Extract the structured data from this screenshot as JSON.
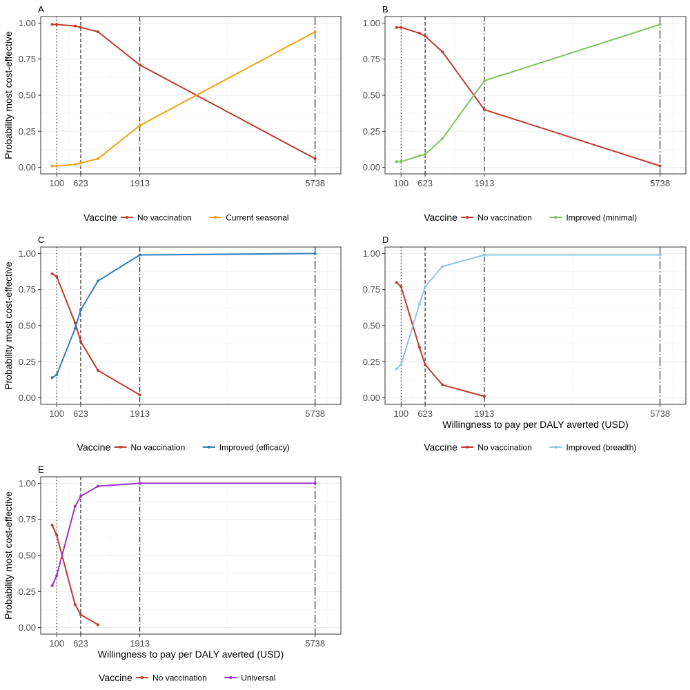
{
  "figure": {
    "y_axis_title": "Probability most cost-effective",
    "x_axis_title": "Willingness to pay per DALY averted (USD)",
    "legend_title": "Vaccine",
    "reference_lines": [
      {
        "x": 100,
        "style": "dotted"
      },
      {
        "x": 623,
        "style": "dashed"
      },
      {
        "x": 1913,
        "style": "dashdot"
      },
      {
        "x": 5738,
        "style": "longdash"
      }
    ]
  },
  "chart_data": [
    {
      "panel": "A",
      "type": "line",
      "xlim": [
        -250,
        6300
      ],
      "ylim": [
        0,
        1
      ],
      "x_ticks": [
        100,
        623,
        1913,
        5738
      ],
      "y_ticks": [
        "0.00",
        "0.25",
        "0.50",
        "0.75",
        "1.00"
      ],
      "xlabel": "",
      "ylabel": "Probability most cost-effective",
      "legend": {
        "title": "Vaccine",
        "position": "bottom"
      },
      "series": [
        {
          "name": "No vaccination",
          "color": "#c0392b",
          "x": [
            0,
            100,
            500,
            623,
            1000,
            1913,
            5738
          ],
          "y": [
            0.99,
            0.99,
            0.98,
            0.97,
            0.94,
            0.71,
            0.06
          ]
        },
        {
          "name": "Current seasonal",
          "color": "#f0a30a",
          "x": [
            0,
            100,
            500,
            623,
            1000,
            1913,
            5738
          ],
          "y": [
            0.01,
            0.01,
            0.02,
            0.03,
            0.06,
            0.29,
            0.94
          ]
        }
      ]
    },
    {
      "panel": "B",
      "type": "line",
      "xlim": [
        -250,
        6300
      ],
      "ylim": [
        0,
        1
      ],
      "x_ticks": [
        100,
        623,
        1913,
        5738
      ],
      "y_ticks": [
        "0.00",
        "0.25",
        "0.50",
        "0.75",
        "1.00"
      ],
      "xlabel": "",
      "ylabel": "",
      "legend": {
        "title": "Vaccine",
        "position": "bottom"
      },
      "series": [
        {
          "name": "No vaccination",
          "color": "#c0392b",
          "x": [
            0,
            100,
            500,
            623,
            1000,
            1913,
            5738
          ],
          "y": [
            0.97,
            0.97,
            0.93,
            0.91,
            0.8,
            0.4,
            0.01
          ]
        },
        {
          "name": "Improved (minimal)",
          "color": "#7dc25c",
          "x": [
            0,
            100,
            500,
            623,
            1000,
            1913,
            5738
          ],
          "y": [
            0.04,
            0.04,
            0.08,
            0.09,
            0.2,
            0.6,
            0.99
          ]
        }
      ]
    },
    {
      "panel": "C",
      "type": "line",
      "xlim": [
        -250,
        6300
      ],
      "ylim": [
        0,
        1
      ],
      "x_ticks": [
        100,
        623,
        1913,
        5738
      ],
      "y_ticks": [
        "0.00",
        "0.25",
        "0.50",
        "0.75",
        "1.00"
      ],
      "xlabel": "",
      "ylabel": "Probability most cost-effective",
      "legend": {
        "title": "Vaccine",
        "position": "bottom"
      },
      "series": [
        {
          "name": "No vaccination",
          "color": "#c0392b",
          "x": [
            0,
            100,
            500,
            623,
            1000,
            1913
          ],
          "y": [
            0.86,
            0.84,
            0.52,
            0.39,
            0.19,
            0.02
          ]
        },
        {
          "name": "Improved (efficacy)",
          "color": "#2e7fb8",
          "x": [
            0,
            100,
            500,
            623,
            1000,
            1913,
            5738
          ],
          "y": [
            0.14,
            0.16,
            0.48,
            0.61,
            0.81,
            0.99,
            1.0
          ]
        }
      ]
    },
    {
      "panel": "D",
      "type": "line",
      "xlim": [
        -250,
        6300
      ],
      "ylim": [
        0,
        1
      ],
      "x_ticks": [
        100,
        623,
        1913,
        5738
      ],
      "y_ticks": [
        "0.00",
        "0.25",
        "0.50",
        "0.75",
        "1.00"
      ],
      "xlabel": "Willingness to pay per DALY averted (USD)",
      "ylabel": "",
      "legend": {
        "title": "Vaccine",
        "position": "bottom"
      },
      "series": [
        {
          "name": "No vaccination",
          "color": "#c0392b",
          "x": [
            0,
            100,
            500,
            623,
            1000,
            1913
          ],
          "y": [
            0.8,
            0.77,
            0.35,
            0.23,
            0.09,
            0.01
          ]
        },
        {
          "name": "Improved (breadth)",
          "color": "#8ec8e0",
          "x": [
            0,
            100,
            500,
            623,
            1000,
            1913,
            5738
          ],
          "y": [
            0.2,
            0.23,
            0.65,
            0.77,
            0.91,
            0.99,
            0.99
          ]
        }
      ]
    },
    {
      "panel": "E",
      "type": "line",
      "xlim": [
        -250,
        6300
      ],
      "ylim": [
        0,
        1
      ],
      "x_ticks": [
        100,
        623,
        1913,
        5738
      ],
      "y_ticks": [
        "0.00",
        "0.25",
        "0.50",
        "0.75",
        "1.00"
      ],
      "xlabel": "Willingness to pay per DALY averted (USD)",
      "ylabel": "Probability most cost-effective",
      "legend": {
        "title": "Vaccine",
        "position": "bottom"
      },
      "series": [
        {
          "name": "No vaccination",
          "color": "#c0392b",
          "x": [
            0,
            100,
            500,
            623,
            1000
          ],
          "y": [
            0.71,
            0.64,
            0.16,
            0.09,
            0.02
          ]
        },
        {
          "name": "Universal",
          "color": "#9b30c9",
          "x": [
            0,
            100,
            500,
            623,
            1000,
            1913,
            5738
          ],
          "y": [
            0.29,
            0.36,
            0.84,
            0.91,
            0.98,
            1.0,
            1.0
          ]
        }
      ]
    }
  ]
}
